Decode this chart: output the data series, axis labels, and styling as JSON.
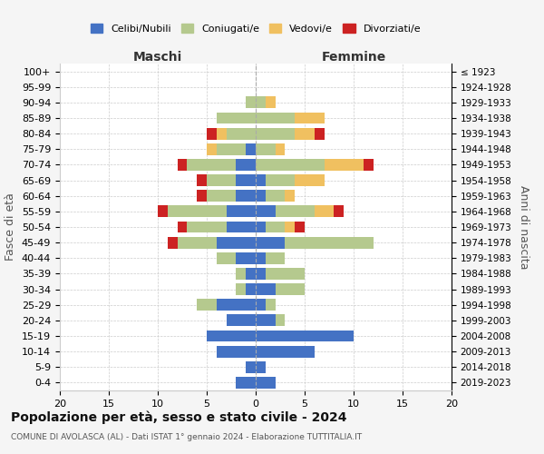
{
  "age_groups": [
    "0-4",
    "5-9",
    "10-14",
    "15-19",
    "20-24",
    "25-29",
    "30-34",
    "35-39",
    "40-44",
    "45-49",
    "50-54",
    "55-59",
    "60-64",
    "65-69",
    "70-74",
    "75-79",
    "80-84",
    "85-89",
    "90-94",
    "95-99",
    "100+"
  ],
  "birth_years": [
    "2019-2023",
    "2014-2018",
    "2009-2013",
    "2004-2008",
    "1999-2003",
    "1994-1998",
    "1989-1993",
    "1984-1988",
    "1979-1983",
    "1974-1978",
    "1969-1973",
    "1964-1968",
    "1959-1963",
    "1954-1958",
    "1949-1953",
    "1944-1948",
    "1939-1943",
    "1934-1938",
    "1929-1933",
    "1924-1928",
    "≤ 1923"
  ],
  "males": {
    "celibi": [
      2,
      1,
      4,
      5,
      3,
      4,
      1,
      1,
      2,
      4,
      3,
      3,
      2,
      2,
      2,
      1,
      0,
      0,
      0,
      0,
      0
    ],
    "coniugati": [
      0,
      0,
      0,
      0,
      0,
      2,
      1,
      1,
      2,
      4,
      4,
      6,
      3,
      3,
      5,
      3,
      3,
      4,
      1,
      0,
      0
    ],
    "vedovi": [
      0,
      0,
      0,
      0,
      0,
      0,
      0,
      0,
      0,
      0,
      0,
      0,
      0,
      0,
      0,
      1,
      1,
      0,
      0,
      0,
      0
    ],
    "divorziati": [
      0,
      0,
      0,
      0,
      0,
      0,
      0,
      0,
      0,
      1,
      1,
      1,
      1,
      1,
      1,
      0,
      1,
      0,
      0,
      0,
      0
    ]
  },
  "females": {
    "nubili": [
      2,
      1,
      6,
      10,
      2,
      1,
      2,
      1,
      1,
      3,
      1,
      2,
      1,
      1,
      0,
      0,
      0,
      0,
      0,
      0,
      0
    ],
    "coniugate": [
      0,
      0,
      0,
      0,
      1,
      1,
      3,
      4,
      2,
      9,
      2,
      4,
      2,
      3,
      7,
      2,
      4,
      4,
      1,
      0,
      0
    ],
    "vedove": [
      0,
      0,
      0,
      0,
      0,
      0,
      0,
      0,
      0,
      0,
      1,
      2,
      1,
      3,
      4,
      1,
      2,
      3,
      1,
      0,
      0
    ],
    "divorziate": [
      0,
      0,
      0,
      0,
      0,
      0,
      0,
      0,
      0,
      0,
      1,
      1,
      0,
      0,
      1,
      0,
      1,
      0,
      0,
      0,
      0
    ]
  },
  "colors": {
    "celibi": "#4472c4",
    "coniugati": "#b5c98e",
    "vedovi": "#f0c060",
    "divorziati": "#cc2222"
  },
  "xlim": [
    -20,
    20
  ],
  "xticks": [
    -20,
    -15,
    -10,
    -5,
    0,
    5,
    10,
    15,
    20
  ],
  "xticklabels": [
    "20",
    "15",
    "10",
    "5",
    "0",
    "5",
    "10",
    "15",
    "20"
  ],
  "title": "Popolazione per età, sesso e stato civile - 2024",
  "subtitle": "COMUNE DI AVOLASCA (AL) - Dati ISTAT 1° gennaio 2024 - Elaborazione TUTTITALIA.IT",
  "ylabel": "Fasce di età",
  "ylabel2": "Anni di nascita",
  "label_maschi": "Maschi",
  "label_femmine": "Femmine",
  "legend_labels": [
    "Celibi/Nubili",
    "Coniugati/e",
    "Vedovi/e",
    "Divorziati/e"
  ],
  "bg_color": "#f5f5f5",
  "plot_bg": "#ffffff"
}
